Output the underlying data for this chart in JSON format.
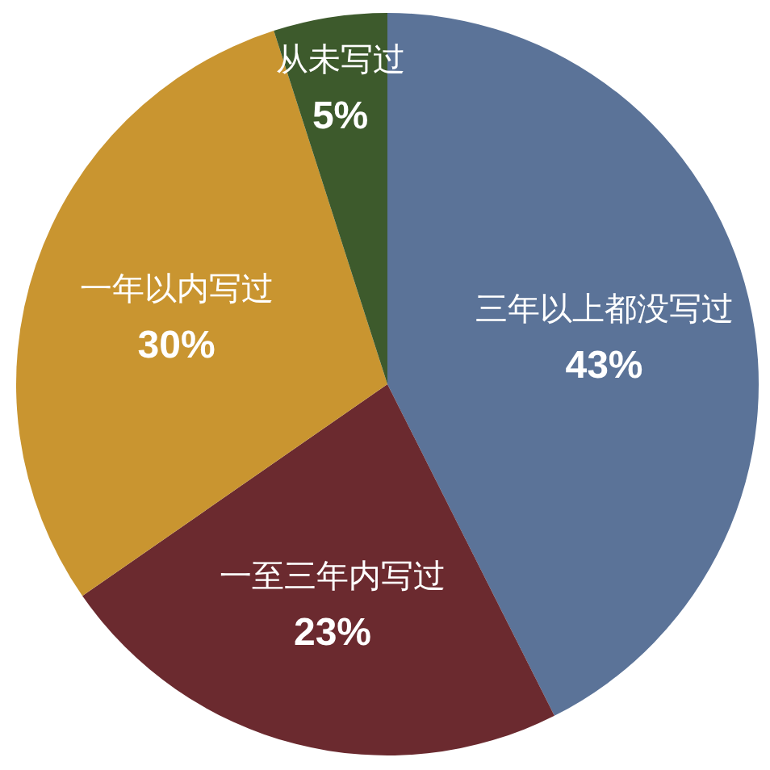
{
  "chart_data": {
    "type": "pie",
    "categories": [
      "三年以上都没写过",
      "一至三年内写过",
      "一年以内写过",
      "从未写过"
    ],
    "values": [
      43,
      23,
      30,
      5
    ],
    "value_labels": [
      "43%",
      "23%",
      "30%",
      "5%"
    ],
    "colors": [
      "#5b7398",
      "#6b2a2f",
      "#c99530",
      "#3d5a2c"
    ]
  }
}
